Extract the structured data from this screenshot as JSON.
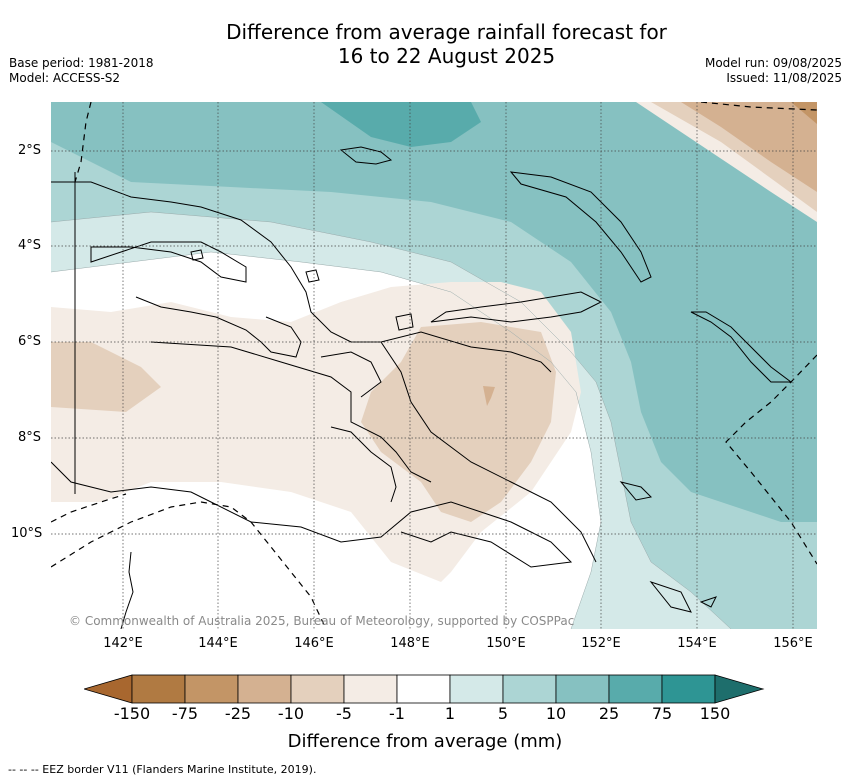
{
  "title_line1": "Difference from average rainfall forecast for",
  "title_line2": "16 to 22 August 2025",
  "base_period": "Base period: 1981-2018",
  "model": "Model: ACCESS-S2",
  "model_run": "Model run: 09/08/2025",
  "issued": "Issued: 11/08/2025",
  "copyright": "© Commonwealth of Australia 2025, Bureau of Meteorology, supported by COSPPac",
  "lat_labels": [
    "2°S",
    "4°S",
    "6°S",
    "8°S",
    "10°S"
  ],
  "lon_labels": [
    "142°E",
    "144°E",
    "146°E",
    "148°E",
    "150°E",
    "152°E",
    "154°E",
    "156°E"
  ],
  "colorbar": {
    "title": "Difference from average (mm)",
    "ticks": [
      "-150",
      "-75",
      "-25",
      "-10",
      "-5",
      "-1",
      "1",
      "5",
      "10",
      "25",
      "75",
      "150"
    ],
    "colors": [
      "#a8672f",
      "#b07a42",
      "#c39566",
      "#d4b191",
      "#e4d0bd",
      "#f4ece5",
      "#ffffff",
      "#d4e9e8",
      "#acd5d4",
      "#86c1c1",
      "#58abab",
      "#2e9594",
      "#1e6e6c"
    ]
  },
  "footnote": "--  --  -- EEZ border V11 (Flanders Marine Institute, 2019)."
}
